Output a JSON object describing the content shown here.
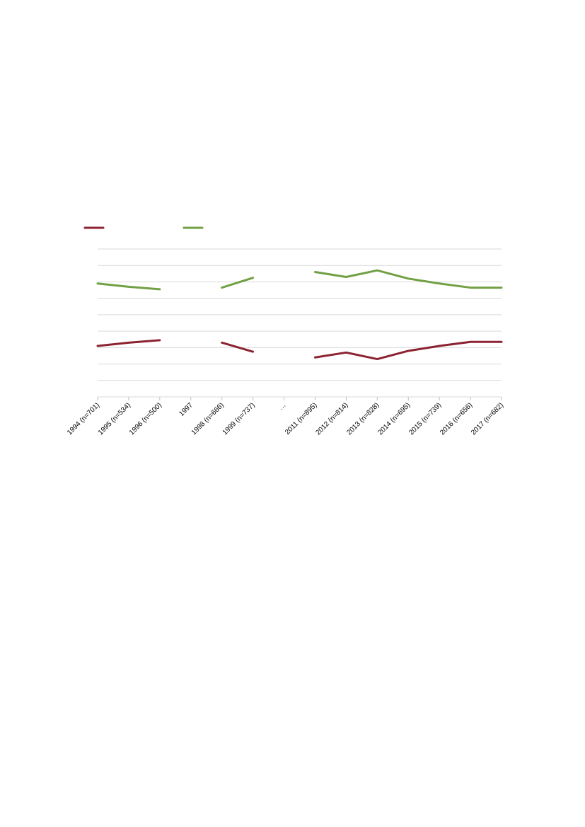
{
  "chart_data": {
    "type": "line",
    "categories": [
      "1994 (n=701)",
      "1995 (n=534)",
      "1996 (n=500)",
      "1997",
      "1998 (n=666)",
      "1999 (n=737)",
      "…",
      "2011 (n=895)",
      "2012 (n=814)",
      "2013 (n=828)",
      "2014 (n=695)",
      "2015 (n=739)",
      "2016 (n=656)",
      "2017 (n=682)"
    ],
    "series": [
      {
        "color": "#8b2331",
        "values": [
          3.1,
          3.3,
          3.45,
          null,
          3.3,
          2.75,
          null,
          2.4,
          2.7,
          2.3,
          2.8,
          3.1,
          3.35,
          3.35
        ]
      },
      {
        "color": "#72a044",
        "values": [
          6.9,
          6.7,
          6.55,
          null,
          6.65,
          7.25,
          null,
          7.6,
          7.3,
          7.7,
          7.2,
          6.9,
          6.65,
          6.65
        ]
      }
    ],
    "ylim": [
      0,
      9
    ],
    "gridlines": 9,
    "grid": true,
    "legend_position": "top-left"
  }
}
